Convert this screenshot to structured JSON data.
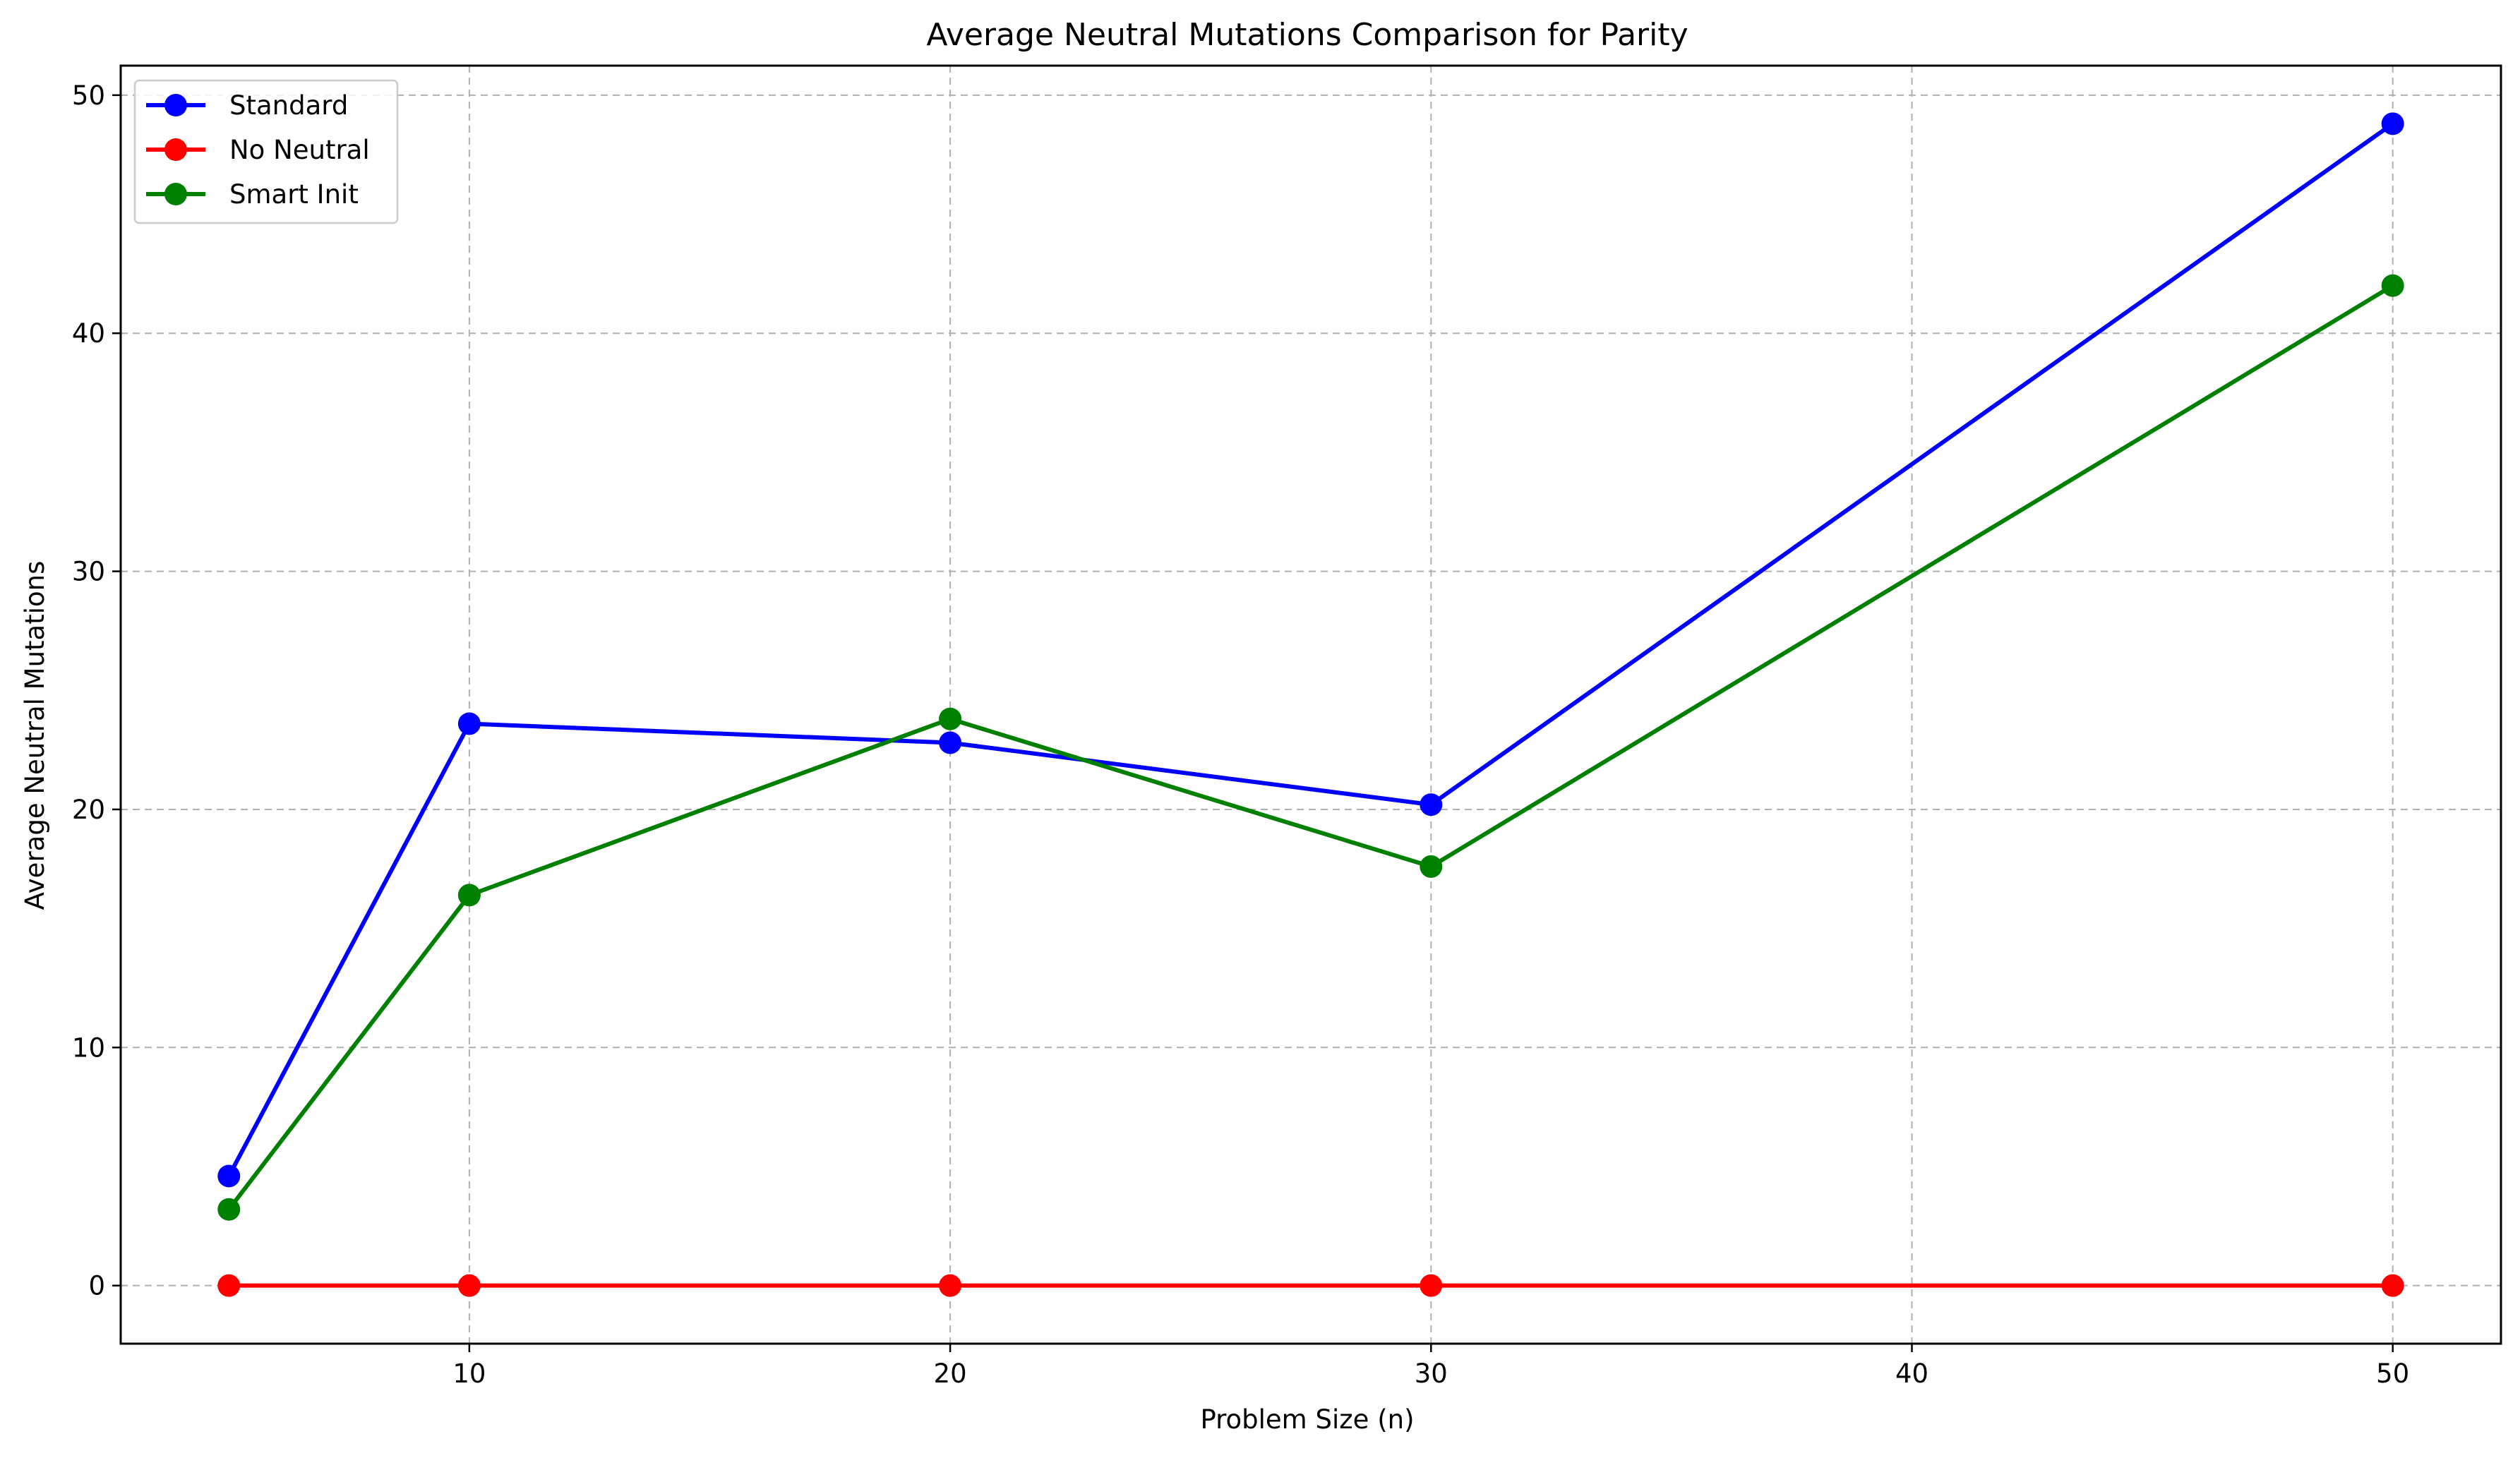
{
  "chart_data": {
    "type": "line",
    "title": "Average Neutral Mutations Comparison for Parity",
    "xlabel": "Problem Size (n)",
    "ylabel": "Average Neutral Mutations",
    "x": [
      5,
      10,
      20,
      30,
      50
    ],
    "xlim": [
      2.75,
      52.25
    ],
    "ylim": [
      -2.44,
      51.24
    ],
    "xticks": [
      10,
      20,
      30,
      40,
      50
    ],
    "yticks": [
      0,
      10,
      20,
      30,
      40,
      50
    ],
    "grid": true,
    "grid_style": "dashed",
    "legend_position": "upper-left",
    "series": [
      {
        "name": "Standard",
        "color": "#0000ff",
        "values": [
          4.6,
          23.6,
          22.8,
          20.2,
          48.8
        ]
      },
      {
        "name": "No Neutral",
        "color": "#ff0000",
        "values": [
          0,
          0,
          0,
          0,
          0
        ]
      },
      {
        "name": "Smart Init",
        "color": "#008000",
        "values": [
          3.2,
          16.4,
          23.8,
          17.6,
          42.0
        ]
      }
    ]
  }
}
